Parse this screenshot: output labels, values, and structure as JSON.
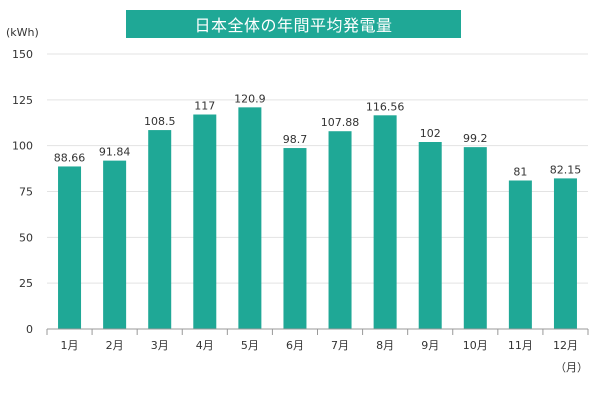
{
  "chart_data": {
    "type": "bar",
    "title": "日本全体の年間平均発電量",
    "ylabel": "(kWh)",
    "xlabel": "（月）",
    "categories": [
      "1月",
      "2月",
      "3月",
      "4月",
      "5月",
      "6月",
      "7月",
      "8月",
      "9月",
      "10月",
      "11月",
      "12月"
    ],
    "values": [
      88.66,
      91.84,
      108.5,
      117,
      120.9,
      98.7,
      107.88,
      116.56,
      102,
      99.2,
      81,
      82.15
    ],
    "value_labels": [
      "88.66",
      "91.84",
      "108.5",
      "117",
      "120.9",
      "98.7",
      "107.88",
      "116.56",
      "102",
      "99.2",
      "81",
      "82.15"
    ],
    "ylim": [
      0,
      150
    ],
    "yticks": [
      "0",
      "25",
      "50",
      "75",
      "100",
      "125",
      "150"
    ],
    "grid": true,
    "bar_color": "#1fa896",
    "grid_color": "#e3e3e3",
    "axis_color": "#999999"
  }
}
